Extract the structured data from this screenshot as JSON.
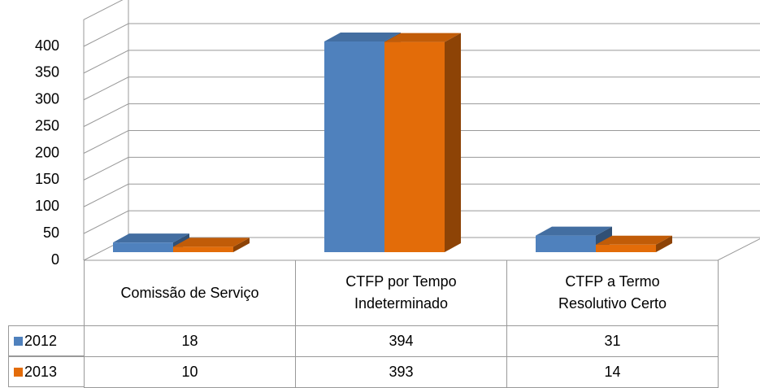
{
  "chart_data": {
    "type": "bar3d",
    "categories": [
      "Comissão de Serviço",
      "CTFP por Tempo Indeterminado",
      "CTFP a Termo Resolutivo Certo"
    ],
    "series": [
      {
        "name": "2012",
        "color": "#4f81bd",
        "values": [
          18,
          394,
          31
        ]
      },
      {
        "name": "2013",
        "color": "#e36c09",
        "values": [
          10,
          393,
          14
        ]
      }
    ],
    "ylim": [
      0,
      450
    ],
    "yticks": [
      0,
      50,
      100,
      150,
      200,
      250,
      300,
      350,
      400
    ],
    "grid": true,
    "data_table": true
  }
}
